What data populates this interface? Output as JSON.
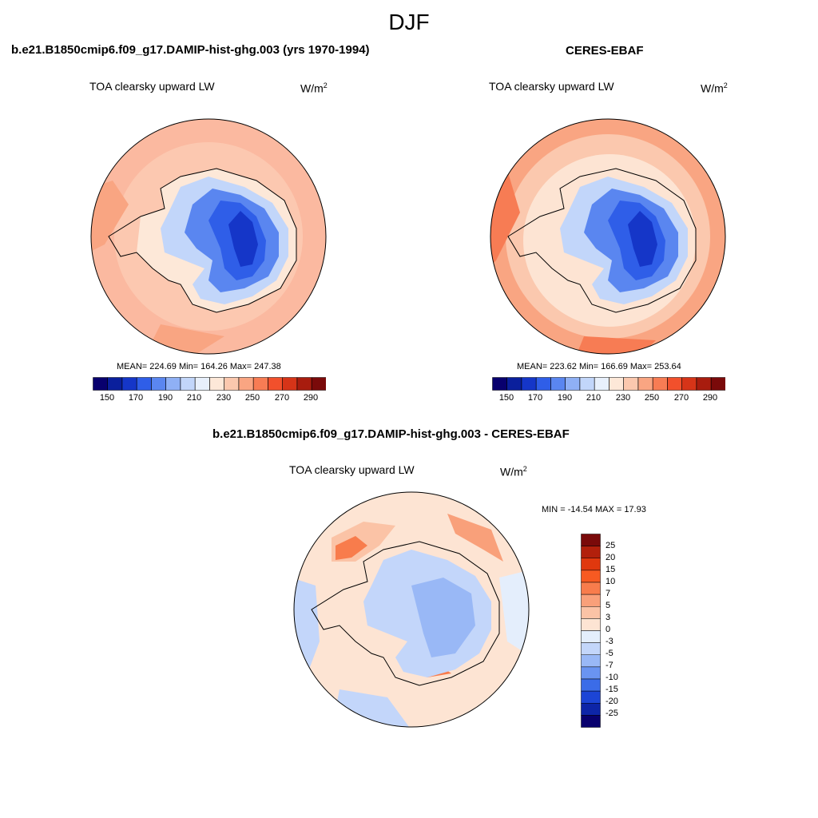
{
  "figure": {
    "season": "DJF",
    "units": {
      "base": "W/m",
      "exponent": "2"
    }
  },
  "panels": [
    {
      "id": "model",
      "title": "b.e21.B1850cmip6.f09_g17.DAMIP-hist-ghg.003 (yrs 1970-1994)",
      "field": "TOA clearsky upward LW",
      "stats": "MEAN= 224.69  Min= 164.26  Max= 247.38"
    },
    {
      "id": "obs",
      "title": "CERES-EBAF",
      "field": "TOA clearsky upward LW",
      "stats": "MEAN= 223.62  Min= 166.69  Max= 253.64"
    },
    {
      "id": "diff",
      "title": "b.e21.B1850cmip6.f09_g17.DAMIP-hist-ghg.003 - CERES-EBAF",
      "field": "TOA clearsky upward LW",
      "stats": "MIN = -14.54 MAX =  17.93"
    }
  ],
  "colorbars": {
    "absolute": {
      "labels": [
        "150",
        "170",
        "190",
        "210",
        "230",
        "250",
        "270",
        "290"
      ],
      "colors": [
        "#08006e",
        "#0a1f9c",
        "#1536c8",
        "#2f5ee8",
        "#5a86f0",
        "#8fb0f5",
        "#c2d6fa",
        "#e8f0fc",
        "#fde8d8",
        "#fbc8ae",
        "#f9a582",
        "#f77c54",
        "#f2502c",
        "#d63418",
        "#a81c0e",
        "#7a0a0a"
      ]
    },
    "difference": {
      "labels": [
        "25",
        "20",
        "15",
        "10",
        "7",
        "5",
        "3",
        "0",
        "-3",
        "-5",
        "-7",
        "-10",
        "-15",
        "-20",
        "-25"
      ],
      "colors": [
        "#7a0a0a",
        "#b2200c",
        "#e0380e",
        "#f75a22",
        "#f87c4c",
        "#f9a07a",
        "#fbc3a6",
        "#fde4d3",
        "#e4eefc",
        "#c3d6fa",
        "#99b8f6",
        "#6a94f1",
        "#3b6ce8",
        "#1c45d6",
        "#0d25a8",
        "#08006e"
      ]
    }
  }
}
